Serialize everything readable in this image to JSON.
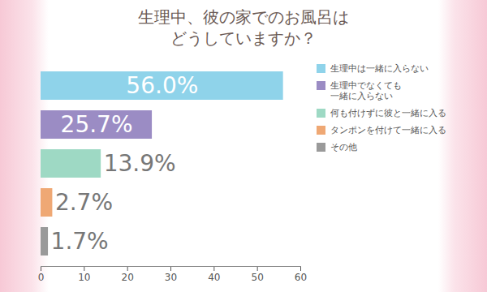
{
  "chart_data": {
    "type": "bar",
    "orientation": "horizontal",
    "title": "生理中、彼の家でのお風呂は\nどうしていますか？",
    "categories": [
      "生理中は一緒に入らない",
      "生理中でなくても\n一緒に入らない",
      "何も付けずに彼と一緒に入る",
      "タンポンを付けて一緒に入る",
      "その他"
    ],
    "values": [
      56.0,
      25.7,
      13.9,
      2.7,
      1.7
    ],
    "value_labels": [
      "56.0%",
      "25.7%",
      "13.9%",
      "2.7%",
      "1.7%"
    ],
    "colors": [
      "#8fd3ea",
      "#9b8cc4",
      "#9ed9c4",
      "#efa874",
      "#9a9a9a"
    ],
    "xlim": [
      0,
      60
    ],
    "xticks": [
      0,
      10,
      20,
      30,
      40,
      50,
      60
    ],
    "data_labels": true,
    "tick_labels": "x",
    "legend": "right",
    "grid": false
  }
}
